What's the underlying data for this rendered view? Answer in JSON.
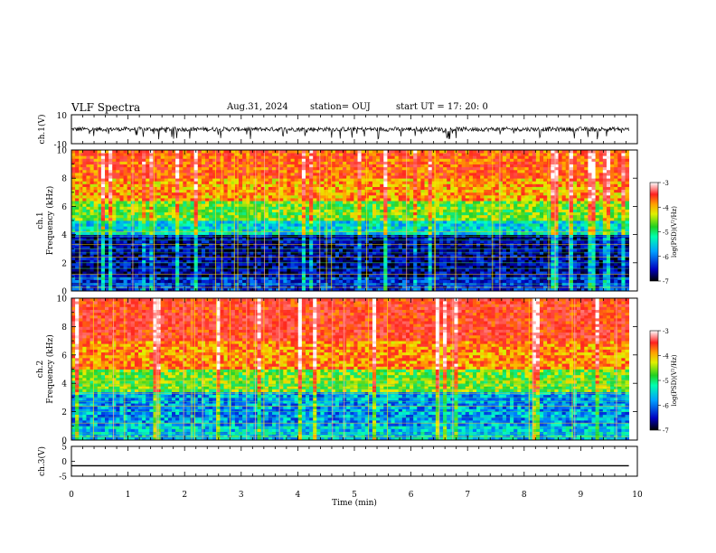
{
  "header": {
    "title": "VLF Spectra",
    "date": "Aug.31, 2024",
    "station": "station= OUJ",
    "start": "start  UT =   17: 20: 0"
  },
  "chart_data": [
    {
      "type": "line",
      "panel": "ch1-waveform",
      "ylabel": "ch.1(V)",
      "ylim": [
        -10,
        10
      ],
      "yticks": [
        "10",
        "-10"
      ],
      "xlim": [
        0,
        10
      ],
      "xlabel": "",
      "baseline": 0,
      "note": "noisy waveform with spikes to about -5"
    },
    {
      "type": "heatmap",
      "panel": "ch1-spectrogram",
      "ylabel": "ch.1\nFrequency  (kHz)",
      "ylim": [
        0,
        10
      ],
      "yticks": [
        0,
        2,
        4,
        6,
        8,
        10
      ],
      "xlim": [
        0,
        9.85
      ],
      "colorbar": {
        "label": "log(PSD)(V²/Hz)",
        "min": -7,
        "max": -3,
        "ticks": [
          "-3",
          "-4",
          "-5",
          "-6",
          "-7"
        ]
      },
      "bands": [
        {
          "from": 0,
          "to": 1.0,
          "level": -6.3
        },
        {
          "from": 1.0,
          "to": 4.0,
          "level": -6.6
        },
        {
          "from": 4.0,
          "to": 5.0,
          "level": -5.6
        },
        {
          "from": 5.0,
          "to": 6.5,
          "level": -4.9
        },
        {
          "from": 6.5,
          "to": 8.0,
          "level": -4.3
        },
        {
          "from": 8.0,
          "to": 10.0,
          "level": -4.0
        }
      ]
    },
    {
      "type": "heatmap",
      "panel": "ch2-spectrogram",
      "ylabel": "ch.2\nFrequency  (kHz)",
      "ylim": [
        0,
        10
      ],
      "yticks": [
        0,
        2,
        4,
        6,
        8,
        10
      ],
      "xlim": [
        0,
        9.85
      ],
      "colorbar": {
        "label": "log(PSD)(V²/Hz)",
        "min": -7,
        "max": -3,
        "ticks": [
          "-3",
          "-4",
          "-5",
          "-6",
          "-7"
        ]
      },
      "bands": [
        {
          "from": 0,
          "to": 1.0,
          "level": -5.7
        },
        {
          "from": 1.0,
          "to": 3.5,
          "level": -5.9
        },
        {
          "from": 3.5,
          "to": 5.0,
          "level": -4.9
        },
        {
          "from": 5.0,
          "to": 7.0,
          "level": -4.2
        },
        {
          "from": 7.0,
          "to": 10.0,
          "level": -3.8
        }
      ]
    },
    {
      "type": "line",
      "panel": "ch3-waveform",
      "ylabel": "ch.3(V)",
      "ylim": [
        -5,
        5
      ],
      "yticks": [
        "5",
        "0",
        "-5"
      ],
      "xlim": [
        0,
        10
      ],
      "xlabel": "Time  (min)",
      "xticks": [
        "0",
        "1",
        "2",
        "3",
        "4",
        "5",
        "6",
        "7",
        "8",
        "9",
        "10"
      ],
      "y_value": -1.5
    }
  ]
}
